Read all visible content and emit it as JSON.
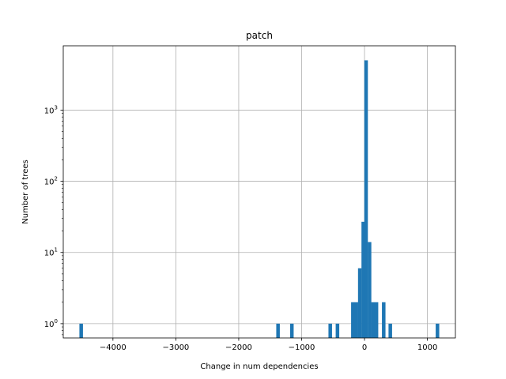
{
  "chart_data": {
    "type": "bar",
    "title": "patch",
    "xlabel": "Change in num dependencies",
    "ylabel": "Number of trees",
    "xlim": [
      -4790,
      1445
    ],
    "ylim": [
      0.63,
      8000
    ],
    "yscale": "log",
    "grid": true,
    "bin_width": 56.7,
    "bar_color": "#1f77b4",
    "x_ticks": [
      -4000,
      -3000,
      -2000,
      -1000,
      0,
      1000
    ],
    "x_tick_labels": [
      "−4000",
      "−3000",
      "−2000",
      "−1000",
      "0",
      "1000"
    ],
    "y_ticks": [
      1,
      10,
      100,
      1000
    ],
    "y_tick_labels": [
      "10",
      "10",
      "10",
      "10"
    ],
    "y_tick_exponents": [
      "0",
      "1",
      "2",
      "3"
    ],
    "bars": [
      {
        "x": -4505,
        "value": 1
      },
      {
        "x": -1375,
        "value": 1
      },
      {
        "x": -1155,
        "value": 1
      },
      {
        "x": -545,
        "value": 1
      },
      {
        "x": -430,
        "value": 1
      },
      {
        "x": -185,
        "value": 2
      },
      {
        "x": -130,
        "value": 2
      },
      {
        "x": -75,
        "value": 6
      },
      {
        "x": -20,
        "value": 27
      },
      {
        "x": 25,
        "value": 5000
      },
      {
        "x": 80,
        "value": 14
      },
      {
        "x": 135,
        "value": 2
      },
      {
        "x": 190,
        "value": 2
      },
      {
        "x": 305,
        "value": 2
      },
      {
        "x": 410,
        "value": 1
      },
      {
        "x": 1160,
        "value": 1
      }
    ]
  }
}
